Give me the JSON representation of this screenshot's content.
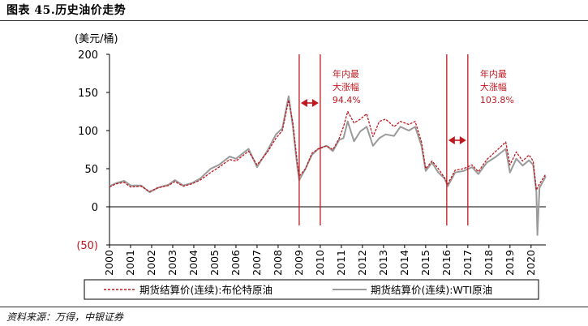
{
  "figure": {
    "title": "图表 45.历史油价走势",
    "source": "资料来源：万得，中银证券"
  },
  "colors": {
    "brent": "#c0181f",
    "wti": "#9a9a9a",
    "annotation": "#c0181f",
    "axis": "#000000"
  },
  "chart_data": {
    "type": "line",
    "unit_label": "(美元/桶)",
    "ylim": [
      -50,
      200
    ],
    "y_ticks": [
      200,
      150,
      100,
      50,
      0,
      -50
    ],
    "y_tick_labels": [
      "200",
      "150",
      "100",
      "50",
      "0",
      "(50)"
    ],
    "x_range": [
      2000,
      2020.7
    ],
    "x_tick_labels": [
      "2000",
      "2001",
      "2002",
      "2003",
      "2004",
      "2005",
      "2006",
      "2007",
      "2008",
      "2009",
      "2010",
      "2011",
      "2012",
      "2013",
      "2014",
      "2015",
      "2016",
      "2017",
      "2018",
      "2019",
      "2020"
    ],
    "series": [
      {
        "name": "期货结算价(连续):布伦特原油",
        "style": "dashed",
        "color": "#c0181f",
        "points": [
          [
            2000.0,
            26
          ],
          [
            2000.3,
            30
          ],
          [
            2000.7,
            32
          ],
          [
            2001.0,
            26
          ],
          [
            2001.5,
            27
          ],
          [
            2001.9,
            20
          ],
          [
            2002.3,
            25
          ],
          [
            2002.8,
            28
          ],
          [
            2003.1,
            33
          ],
          [
            2003.5,
            27
          ],
          [
            2003.9,
            30
          ],
          [
            2004.3,
            35
          ],
          [
            2004.8,
            45
          ],
          [
            2005.2,
            52
          ],
          [
            2005.7,
            62
          ],
          [
            2006.0,
            60
          ],
          [
            2006.6,
            73
          ],
          [
            2007.0,
            55
          ],
          [
            2007.5,
            72
          ],
          [
            2007.9,
            90
          ],
          [
            2008.2,
            100
          ],
          [
            2008.5,
            140
          ],
          [
            2008.7,
            110
          ],
          [
            2008.9,
            60
          ],
          [
            2009.0,
            40
          ],
          [
            2009.3,
            50
          ],
          [
            2009.6,
            70
          ],
          [
            2009.9,
            76
          ],
          [
            2010.3,
            80
          ],
          [
            2010.6,
            75
          ],
          [
            2010.9,
            90
          ],
          [
            2011.1,
            105
          ],
          [
            2011.3,
            125
          ],
          [
            2011.6,
            110
          ],
          [
            2011.9,
            115
          ],
          [
            2012.2,
            122
          ],
          [
            2012.5,
            92
          ],
          [
            2012.8,
            112
          ],
          [
            2013.1,
            115
          ],
          [
            2013.5,
            105
          ],
          [
            2013.8,
            112
          ],
          [
            2014.2,
            108
          ],
          [
            2014.5,
            112
          ],
          [
            2014.8,
            85
          ],
          [
            2015.0,
            50
          ],
          [
            2015.3,
            60
          ],
          [
            2015.6,
            50
          ],
          [
            2015.9,
            38
          ],
          [
            2016.05,
            30
          ],
          [
            2016.4,
            48
          ],
          [
            2016.8,
            50
          ],
          [
            2017.2,
            55
          ],
          [
            2017.5,
            46
          ],
          [
            2017.9,
            62
          ],
          [
            2018.3,
            72
          ],
          [
            2018.8,
            85
          ],
          [
            2019.0,
            55
          ],
          [
            2019.3,
            72
          ],
          [
            2019.6,
            60
          ],
          [
            2019.9,
            68
          ],
          [
            2020.1,
            60
          ],
          [
            2020.25,
            22
          ],
          [
            2020.4,
            30
          ],
          [
            2020.7,
            43
          ]
        ]
      },
      {
        "name": "期货结算价(连续):WTI原油",
        "style": "solid",
        "color": "#9a9a9a",
        "points": [
          [
            2000.0,
            27
          ],
          [
            2000.3,
            31
          ],
          [
            2000.7,
            34
          ],
          [
            2001.0,
            28
          ],
          [
            2001.5,
            28
          ],
          [
            2001.9,
            19
          ],
          [
            2002.3,
            25
          ],
          [
            2002.8,
            29
          ],
          [
            2003.1,
            35
          ],
          [
            2003.5,
            28
          ],
          [
            2003.9,
            31
          ],
          [
            2004.3,
            37
          ],
          [
            2004.8,
            50
          ],
          [
            2005.2,
            55
          ],
          [
            2005.7,
            66
          ],
          [
            2006.0,
            63
          ],
          [
            2006.6,
            76
          ],
          [
            2007.0,
            52
          ],
          [
            2007.5,
            74
          ],
          [
            2007.9,
            95
          ],
          [
            2008.2,
            103
          ],
          [
            2008.5,
            145
          ],
          [
            2008.7,
            105
          ],
          [
            2008.9,
            55
          ],
          [
            2009.0,
            35
          ],
          [
            2009.3,
            50
          ],
          [
            2009.6,
            68
          ],
          [
            2009.9,
            76
          ],
          [
            2010.3,
            80
          ],
          [
            2010.6,
            73
          ],
          [
            2010.9,
            88
          ],
          [
            2011.1,
            90
          ],
          [
            2011.3,
            112
          ],
          [
            2011.6,
            86
          ],
          [
            2011.9,
            99
          ],
          [
            2012.2,
            105
          ],
          [
            2012.5,
            80
          ],
          [
            2012.8,
            90
          ],
          [
            2013.1,
            95
          ],
          [
            2013.5,
            93
          ],
          [
            2013.8,
            105
          ],
          [
            2014.2,
            100
          ],
          [
            2014.5,
            105
          ],
          [
            2014.8,
            80
          ],
          [
            2015.0,
            47
          ],
          [
            2015.3,
            58
          ],
          [
            2015.6,
            45
          ],
          [
            2015.9,
            37
          ],
          [
            2016.05,
            27
          ],
          [
            2016.4,
            45
          ],
          [
            2016.8,
            47
          ],
          [
            2017.2,
            52
          ],
          [
            2017.5,
            43
          ],
          [
            2017.9,
            58
          ],
          [
            2018.3,
            65
          ],
          [
            2018.8,
            76
          ],
          [
            2019.0,
            45
          ],
          [
            2019.3,
            63
          ],
          [
            2019.6,
            54
          ],
          [
            2019.9,
            61
          ],
          [
            2020.1,
            55
          ],
          [
            2020.25,
            20
          ],
          [
            2020.3,
            -37
          ],
          [
            2020.4,
            25
          ],
          [
            2020.7,
            40
          ]
        ]
      }
    ],
    "annotations": [
      {
        "line_years": [
          2009.0,
          2010.0
        ],
        "text_lines": [
          "年内最",
          "大涨幅",
          "94.4%"
        ]
      },
      {
        "line_years": [
          2016.0,
          2017.0
        ],
        "text_lines": [
          "年内最",
          "大涨幅",
          "103.8%"
        ]
      }
    ]
  }
}
